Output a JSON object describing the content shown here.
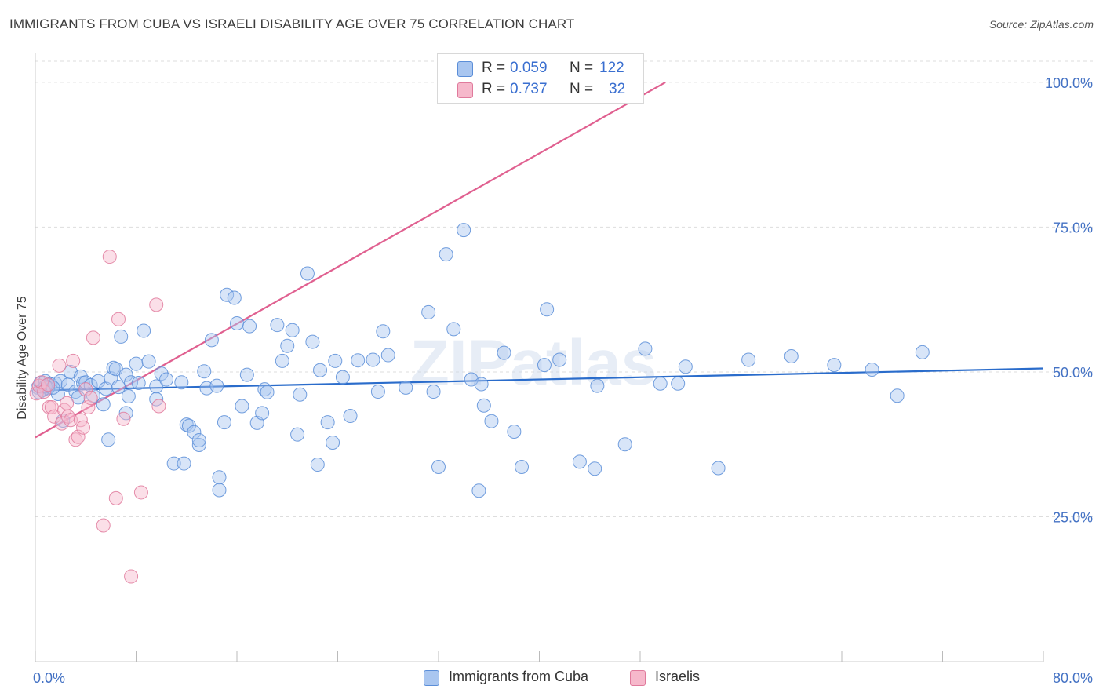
{
  "header": {
    "title": "IMMIGRANTS FROM CUBA VS ISRAELI DISABILITY AGE OVER 75 CORRELATION CHART",
    "source": "Source: ZipAtlas.com"
  },
  "watermark": "ZIPatlas",
  "legend_top": {
    "rows": [
      {
        "r_label": "R =",
        "r_value": "0.059",
        "n_label": "N =",
        "n_value": "122"
      },
      {
        "r_label": "R =",
        "r_value": "0.737",
        "n_label": "N =",
        "n_value": "32"
      }
    ]
  },
  "legend_bottom": {
    "items": [
      {
        "label": "Immigrants from Cuba"
      },
      {
        "label": "Israelis"
      }
    ]
  },
  "colors": {
    "cuba_fill": "#a9c6f0",
    "cuba_stroke": "#5b8ed8",
    "cuba_line": "#2a6ccb",
    "israeli_fill": "#f6b8cb",
    "israeli_stroke": "#e07a9c",
    "israeli_line": "#e06090",
    "axis_text": "#4472c4",
    "grid": "#dddddd"
  },
  "chart_data": {
    "type": "scatter",
    "title": "IMMIGRANTS FROM CUBA VS ISRAELI DISABILITY AGE OVER 75 CORRELATION CHART",
    "xlabel": "",
    "ylabel": "Disability Age Over 75",
    "xlim": [
      0,
      80
    ],
    "ylim": [
      0,
      105
    ],
    "x_tick_labels": [
      "0.0%",
      "80.0%"
    ],
    "y_ticks": [
      25,
      50,
      75,
      100
    ],
    "y_tick_labels": [
      "25.0%",
      "50.0%",
      "75.0%",
      "100.0%"
    ],
    "grid": "horizontal dashed",
    "legend": "bottom-center",
    "series": [
      {
        "name": "Immigrants from Cuba",
        "R": 0.059,
        "N": 122,
        "trend": {
          "x": [
            0,
            80
          ],
          "y": [
            46.8,
            50.6
          ]
        },
        "points": [
          [
            0.2,
            47.3
          ],
          [
            0.4,
            48.1
          ],
          [
            0.6,
            46.9
          ],
          [
            0.8,
            48.4
          ],
          [
            1.0,
            47.7
          ],
          [
            1.2,
            47.9
          ],
          [
            1.6,
            48.0
          ],
          [
            1.8,
            46.2
          ],
          [
            2.0,
            48.4
          ],
          [
            2.2,
            41.6
          ],
          [
            2.6,
            47.8
          ],
          [
            2.8,
            50.0
          ],
          [
            3.2,
            46.6
          ],
          [
            3.6,
            49.2
          ],
          [
            3.8,
            48.1
          ],
          [
            4.0,
            48.2
          ],
          [
            4.4,
            47.7
          ],
          [
            4.6,
            45.9
          ],
          [
            5.0,
            48.4
          ],
          [
            5.4,
            44.4
          ],
          [
            5.6,
            47.1
          ],
          [
            5.8,
            38.3
          ],
          [
            6.0,
            48.9
          ],
          [
            6.2,
            50.7
          ],
          [
            6.4,
            50.5
          ],
          [
            6.6,
            47.4
          ],
          [
            6.8,
            56.1
          ],
          [
            7.2,
            49.5
          ],
          [
            7.2,
            42.9
          ],
          [
            7.4,
            45.8
          ],
          [
            7.6,
            48.2
          ],
          [
            8.0,
            51.4
          ],
          [
            8.2,
            48.1
          ],
          [
            8.6,
            57.1
          ],
          [
            9.0,
            51.8
          ],
          [
            9.6,
            47.5
          ],
          [
            10.0,
            49.7
          ],
          [
            10.4,
            48.7
          ],
          [
            11.0,
            34.2
          ],
          [
            11.6,
            48.2
          ],
          [
            12.0,
            40.9
          ],
          [
            12.2,
            40.7
          ],
          [
            12.6,
            39.6
          ],
          [
            13.0,
            37.4
          ],
          [
            13.4,
            50.1
          ],
          [
            13.6,
            47.2
          ],
          [
            14.0,
            55.5
          ],
          [
            14.4,
            47.6
          ],
          [
            14.6,
            31.8
          ],
          [
            14.6,
            29.6
          ],
          [
            15.0,
            41.3
          ],
          [
            15.2,
            63.3
          ],
          [
            15.8,
            62.8
          ],
          [
            16.0,
            58.4
          ],
          [
            16.4,
            44.1
          ],
          [
            16.8,
            49.5
          ],
          [
            17.0,
            57.9
          ],
          [
            17.6,
            41.2
          ],
          [
            18.0,
            42.9
          ],
          [
            18.2,
            47.0
          ],
          [
            18.4,
            46.5
          ],
          [
            19.2,
            58.1
          ],
          [
            19.6,
            51.9
          ],
          [
            20.0,
            54.5
          ],
          [
            20.4,
            57.2
          ],
          [
            20.8,
            39.2
          ],
          [
            21.0,
            46.1
          ],
          [
            21.6,
            67.0
          ],
          [
            22.0,
            55.2
          ],
          [
            22.6,
            50.3
          ],
          [
            23.2,
            41.3
          ],
          [
            23.6,
            37.8
          ],
          [
            23.8,
            51.9
          ],
          [
            24.4,
            49.1
          ],
          [
            25.0,
            42.4
          ],
          [
            25.6,
            52.0
          ],
          [
            26.8,
            52.1
          ],
          [
            27.2,
            46.6
          ],
          [
            27.6,
            57.0
          ],
          [
            28.0,
            52.9
          ],
          [
            29.4,
            47.3
          ],
          [
            31.2,
            60.3
          ],
          [
            31.6,
            46.6
          ],
          [
            32.0,
            33.6
          ],
          [
            32.6,
            70.3
          ],
          [
            33.2,
            57.4
          ],
          [
            34.0,
            74.5
          ],
          [
            34.6,
            48.7
          ],
          [
            35.2,
            29.5
          ],
          [
            35.6,
            44.2
          ],
          [
            35.4,
            47.9
          ],
          [
            36.2,
            41.5
          ],
          [
            38.0,
            39.7
          ],
          [
            37.2,
            53.3
          ],
          [
            38.6,
            33.6
          ],
          [
            40.4,
            51.2
          ],
          [
            40.6,
            60.8
          ],
          [
            41.6,
            52.1
          ],
          [
            43.2,
            34.5
          ],
          [
            44.4,
            33.3
          ],
          [
            44.6,
            47.6
          ],
          [
            46.8,
            37.5
          ],
          [
            48.4,
            54.0
          ],
          [
            49.6,
            48.0
          ],
          [
            51.0,
            48.0
          ],
          [
            51.6,
            50.9
          ],
          [
            54.2,
            33.4
          ],
          [
            56.6,
            52.1
          ],
          [
            60.0,
            52.7
          ],
          [
            63.4,
            51.2
          ],
          [
            66.4,
            50.4
          ],
          [
            68.4,
            45.9
          ],
          [
            70.4,
            53.4
          ],
          [
            3.4,
            45.6
          ],
          [
            9.6,
            45.3
          ],
          [
            13.0,
            38.2
          ],
          [
            22.4,
            34.0
          ],
          [
            11.8,
            34.2
          ],
          [
            1.0,
            47.2
          ],
          [
            0.6,
            47.0
          ],
          [
            0.3,
            46.5
          ],
          [
            0.8,
            47.5
          ],
          [
            1.4,
            47.3
          ]
        ]
      },
      {
        "name": "Israelis",
        "R": 0.737,
        "N": 32,
        "trend": {
          "x": [
            0,
            50
          ],
          "y": [
            38.7,
            100
          ]
        },
        "points": [
          [
            0.1,
            46.3
          ],
          [
            0.3,
            47.6
          ],
          [
            0.5,
            48.2
          ],
          [
            0.7,
            46.6
          ],
          [
            1.0,
            47.8
          ],
          [
            1.1,
            43.9
          ],
          [
            1.3,
            43.9
          ],
          [
            1.5,
            42.3
          ],
          [
            1.9,
            51.1
          ],
          [
            2.1,
            41.1
          ],
          [
            2.3,
            43.4
          ],
          [
            2.5,
            44.6
          ],
          [
            2.6,
            42.3
          ],
          [
            2.8,
            41.7
          ],
          [
            3.0,
            51.9
          ],
          [
            3.2,
            38.3
          ],
          [
            3.4,
            38.8
          ],
          [
            3.6,
            41.7
          ],
          [
            3.8,
            40.4
          ],
          [
            4.0,
            47.0
          ],
          [
            4.2,
            43.9
          ],
          [
            4.4,
            45.5
          ],
          [
            4.6,
            55.9
          ],
          [
            5.4,
            23.5
          ],
          [
            5.9,
            69.9
          ],
          [
            6.4,
            28.2
          ],
          [
            6.6,
            59.1
          ],
          [
            7.0,
            41.9
          ],
          [
            7.6,
            14.7
          ],
          [
            8.4,
            29.2
          ],
          [
            9.6,
            61.6
          ],
          [
            9.8,
            44.1
          ]
        ]
      }
    ]
  }
}
